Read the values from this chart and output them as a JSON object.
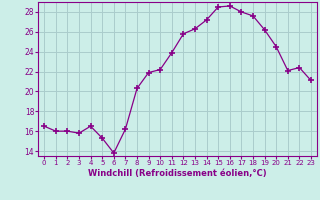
{
  "x": [
    0,
    1,
    2,
    3,
    4,
    5,
    6,
    7,
    8,
    9,
    10,
    11,
    12,
    13,
    14,
    15,
    16,
    17,
    18,
    19,
    20,
    21,
    22,
    23
  ],
  "y": [
    16.5,
    16.0,
    16.0,
    15.8,
    16.5,
    15.3,
    13.8,
    16.2,
    20.3,
    21.9,
    22.2,
    23.9,
    25.8,
    26.3,
    27.2,
    28.5,
    28.6,
    28.0,
    27.6,
    26.2,
    24.5,
    22.1,
    22.4,
    21.1
  ],
  "line_color": "#880088",
  "marker": "+",
  "marker_size": 4,
  "marker_lw": 1.2,
  "bg_color": "#cceee8",
  "grid_color": "#aacccc",
  "xlabel": "Windchill (Refroidissement éolien,°C)",
  "xlabel_color": "#880088",
  "tick_color": "#880088",
  "label_color": "#880088",
  "ylim": [
    13.5,
    29.0
  ],
  "yticks": [
    14,
    16,
    18,
    20,
    22,
    24,
    26,
    28
  ],
  "xlim": [
    -0.5,
    23.5
  ],
  "xticks": [
    0,
    1,
    2,
    3,
    4,
    5,
    6,
    7,
    8,
    9,
    10,
    11,
    12,
    13,
    14,
    15,
    16,
    17,
    18,
    19,
    20,
    21,
    22,
    23
  ]
}
